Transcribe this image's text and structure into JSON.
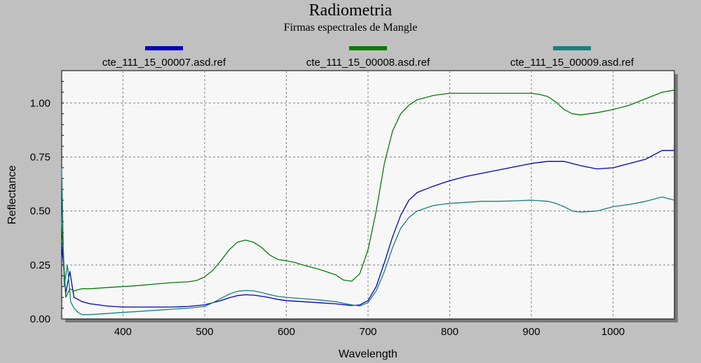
{
  "chart_data": {
    "type": "line",
    "title": "Radiometria",
    "subtitle": "Firmas espectrales de Mangle",
    "xlabel": "Wavelength",
    "ylabel": "Reflectance",
    "xlim": [
      325,
      1075
    ],
    "ylim": [
      0,
      1.15
    ],
    "xticks": [
      400,
      500,
      600,
      700,
      800,
      900,
      1000
    ],
    "xtick_labels": [
      "400",
      "500",
      "600",
      "700",
      "800",
      "900",
      "1000"
    ],
    "yticks": [
      0,
      0.25,
      0.5,
      0.75,
      1.0
    ],
    "ytick_labels": [
      "0.00",
      "0.25",
      "0.50",
      "0.75",
      "1.00"
    ],
    "grid": true,
    "legend_position": "top",
    "series": [
      {
        "name": "cte_111_15_00007.asd.ref",
        "color": "#0000b4",
        "points": [
          [
            325,
            0.35
          ],
          [
            330,
            0.12
          ],
          [
            335,
            0.22
          ],
          [
            340,
            0.1
          ],
          [
            345,
            0.09
          ],
          [
            350,
            0.08
          ],
          [
            360,
            0.07
          ],
          [
            370,
            0.065
          ],
          [
            380,
            0.06
          ],
          [
            400,
            0.055
          ],
          [
            420,
            0.055
          ],
          [
            440,
            0.055
          ],
          [
            460,
            0.055
          ],
          [
            480,
            0.058
          ],
          [
            500,
            0.065
          ],
          [
            510,
            0.075
          ],
          [
            520,
            0.085
          ],
          [
            530,
            0.098
          ],
          [
            540,
            0.108
          ],
          [
            550,
            0.112
          ],
          [
            560,
            0.11
          ],
          [
            570,
            0.105
          ],
          [
            580,
            0.098
          ],
          [
            590,
            0.09
          ],
          [
            600,
            0.085
          ],
          [
            620,
            0.08
          ],
          [
            640,
            0.075
          ],
          [
            660,
            0.07
          ],
          [
            680,
            0.062
          ],
          [
            690,
            0.065
          ],
          [
            700,
            0.085
          ],
          [
            710,
            0.15
          ],
          [
            720,
            0.26
          ],
          [
            730,
            0.38
          ],
          [
            740,
            0.48
          ],
          [
            750,
            0.55
          ],
          [
            760,
            0.585
          ],
          [
            780,
            0.615
          ],
          [
            800,
            0.64
          ],
          [
            820,
            0.66
          ],
          [
            840,
            0.675
          ],
          [
            860,
            0.69
          ],
          [
            880,
            0.705
          ],
          [
            900,
            0.72
          ],
          [
            920,
            0.73
          ],
          [
            940,
            0.73
          ],
          [
            960,
            0.71
          ],
          [
            980,
            0.695
          ],
          [
            1000,
            0.7
          ],
          [
            1020,
            0.72
          ],
          [
            1040,
            0.74
          ],
          [
            1060,
            0.78
          ],
          [
            1075,
            0.78
          ]
        ]
      },
      {
        "name": "cte_111_15_00008.asd.ref",
        "color": "#0a7a0a",
        "points": [
          [
            325,
            0.45
          ],
          [
            330,
            0.1
          ],
          [
            335,
            0.14
          ],
          [
            340,
            0.13
          ],
          [
            345,
            0.135
          ],
          [
            350,
            0.14
          ],
          [
            360,
            0.14
          ],
          [
            380,
            0.145
          ],
          [
            400,
            0.15
          ],
          [
            420,
            0.155
          ],
          [
            440,
            0.162
          ],
          [
            460,
            0.168
          ],
          [
            480,
            0.172
          ],
          [
            490,
            0.178
          ],
          [
            500,
            0.195
          ],
          [
            510,
            0.225
          ],
          [
            520,
            0.27
          ],
          [
            530,
            0.32
          ],
          [
            540,
            0.355
          ],
          [
            550,
            0.365
          ],
          [
            560,
            0.355
          ],
          [
            570,
            0.33
          ],
          [
            580,
            0.295
          ],
          [
            590,
            0.275
          ],
          [
            600,
            0.27
          ],
          [
            610,
            0.262
          ],
          [
            620,
            0.25
          ],
          [
            640,
            0.23
          ],
          [
            660,
            0.205
          ],
          [
            670,
            0.18
          ],
          [
            680,
            0.175
          ],
          [
            690,
            0.21
          ],
          [
            700,
            0.32
          ],
          [
            710,
            0.5
          ],
          [
            720,
            0.72
          ],
          [
            730,
            0.87
          ],
          [
            740,
            0.95
          ],
          [
            750,
            0.99
          ],
          [
            760,
            1.015
          ],
          [
            780,
            1.035
          ],
          [
            800,
            1.045
          ],
          [
            820,
            1.045
          ],
          [
            840,
            1.045
          ],
          [
            860,
            1.045
          ],
          [
            880,
            1.045
          ],
          [
            900,
            1.045
          ],
          [
            910,
            1.04
          ],
          [
            920,
            1.03
          ],
          [
            930,
            1.005
          ],
          [
            940,
            0.97
          ],
          [
            950,
            0.95
          ],
          [
            960,
            0.945
          ],
          [
            980,
            0.955
          ],
          [
            1000,
            0.97
          ],
          [
            1020,
            0.99
          ],
          [
            1040,
            1.02
          ],
          [
            1060,
            1.05
          ],
          [
            1075,
            1.06
          ]
        ]
      },
      {
        "name": "cte_111_15_00009.asd.ref",
        "color": "#1a7f7f",
        "points": [
          [
            325,
            0.7
          ],
          [
            328,
            0.15
          ],
          [
            332,
            0.25
          ],
          [
            336,
            0.08
          ],
          [
            340,
            0.05
          ],
          [
            345,
            0.03
          ],
          [
            350,
            0.02
          ],
          [
            360,
            0.02
          ],
          [
            380,
            0.025
          ],
          [
            400,
            0.03
          ],
          [
            420,
            0.035
          ],
          [
            440,
            0.04
          ],
          [
            460,
            0.045
          ],
          [
            480,
            0.05
          ],
          [
            500,
            0.058
          ],
          [
            510,
            0.075
          ],
          [
            520,
            0.095
          ],
          [
            530,
            0.115
          ],
          [
            540,
            0.128
          ],
          [
            550,
            0.132
          ],
          [
            560,
            0.13
          ],
          [
            570,
            0.122
          ],
          [
            580,
            0.112
          ],
          [
            590,
            0.104
          ],
          [
            600,
            0.1
          ],
          [
            620,
            0.094
          ],
          [
            640,
            0.088
          ],
          [
            660,
            0.08
          ],
          [
            680,
            0.065
          ],
          [
            690,
            0.06
          ],
          [
            700,
            0.075
          ],
          [
            710,
            0.13
          ],
          [
            720,
            0.22
          ],
          [
            730,
            0.33
          ],
          [
            740,
            0.42
          ],
          [
            750,
            0.47
          ],
          [
            760,
            0.5
          ],
          [
            780,
            0.525
          ],
          [
            800,
            0.535
          ],
          [
            820,
            0.54
          ],
          [
            840,
            0.545
          ],
          [
            860,
            0.545
          ],
          [
            880,
            0.547
          ],
          [
            900,
            0.55
          ],
          [
            920,
            0.545
          ],
          [
            930,
            0.535
          ],
          [
            940,
            0.52
          ],
          [
            950,
            0.5
          ],
          [
            960,
            0.495
          ],
          [
            980,
            0.5
          ],
          [
            1000,
            0.52
          ],
          [
            1020,
            0.53
          ],
          [
            1040,
            0.545
          ],
          [
            1060,
            0.565
          ],
          [
            1075,
            0.55
          ]
        ]
      }
    ]
  }
}
